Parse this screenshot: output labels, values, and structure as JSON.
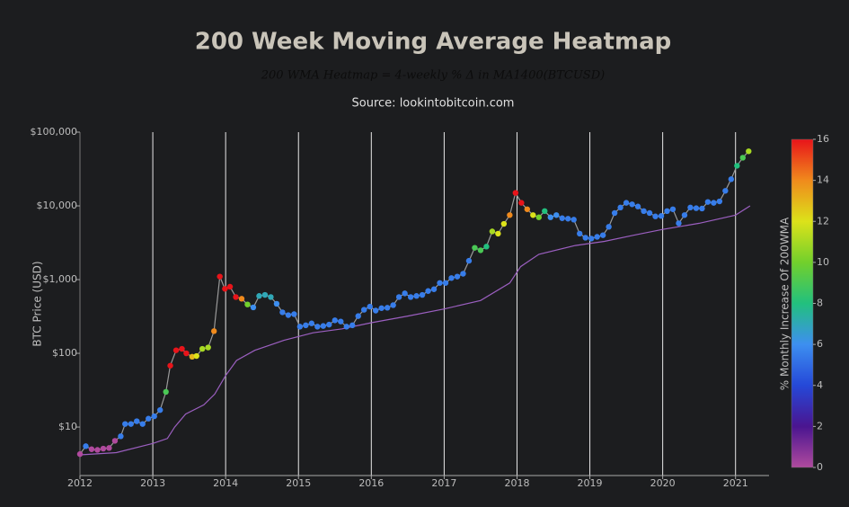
{
  "chart_data": {
    "type": "scatter",
    "title": "200 Week Moving Average Heatmap",
    "subtitle": "200 WMA Heatmap = 4-weekly % Δ in MA1400(BTCUSD)",
    "source": "Source: lookintobitcoin.com",
    "ylabel": "BTC Price (USD)",
    "colorbar_label": "% Monthly Increase Of 200WMA",
    "log_y": true,
    "grid_x": true,
    "xlim": [
      2012,
      2021.46
    ],
    "xticks": [
      2012,
      2013,
      2014,
      2015,
      2016,
      2017,
      2018,
      2019,
      2020,
      2021
    ],
    "ylim": [
      2.2,
      100000
    ],
    "yticks": [
      {
        "value": 10,
        "label": "$10"
      },
      {
        "value": 100,
        "label": "$100"
      },
      {
        "value": 1000,
        "label": "$1,000"
      },
      {
        "value": 10000,
        "label": "$10,000"
      },
      {
        "value": 100000,
        "label": "$100,000"
      }
    ],
    "colorbar_lim": [
      0,
      16
    ],
    "colorbar_ticks": [
      0,
      2,
      4,
      6,
      8,
      10,
      12,
      14,
      16
    ],
    "colorscale": [
      [
        0,
        "#b04a9e"
      ],
      [
        2,
        "#4a1590"
      ],
      [
        4,
        "#2548d8"
      ],
      [
        6,
        "#3d8ff0"
      ],
      [
        8,
        "#22c07e"
      ],
      [
        10,
        "#72d02c"
      ],
      [
        12,
        "#dce21a"
      ],
      [
        14,
        "#f08a1c"
      ],
      [
        16,
        "#e8141a"
      ]
    ],
    "series": [
      {
        "color": "#9a9a9a",
        "marker": true,
        "x": [
          2012.0,
          2012.08,
          2012.16,
          2012.24,
          2012.32,
          2012.4,
          2012.48,
          2012.56,
          2012.62,
          2012.7,
          2012.78,
          2012.86,
          2012.94,
          2013.02,
          2013.1,
          2013.18,
          2013.24,
          2013.32,
          2013.4,
          2013.46,
          2013.54,
          2013.6,
          2013.68,
          2013.76,
          2013.84,
          2013.92,
          2013.99,
          2014.06,
          2014.14,
          2014.22,
          2014.3,
          2014.38,
          2014.46,
          2014.54,
          2014.62,
          2014.7,
          2014.78,
          2014.86,
          2014.94,
          2015.02,
          2015.1,
          2015.18,
          2015.26,
          2015.34,
          2015.42,
          2015.5,
          2015.58,
          2015.66,
          2015.74,
          2015.82,
          2015.9,
          2015.98,
          2016.06,
          2016.14,
          2016.22,
          2016.3,
          2016.38,
          2016.46,
          2016.54,
          2016.62,
          2016.7,
          2016.78,
          2016.86,
          2016.94,
          2017.02,
          2017.1,
          2017.18,
          2017.26,
          2017.34,
          2017.42,
          2017.5,
          2017.58,
          2017.66,
          2017.74,
          2017.82,
          2017.9,
          2017.98,
          2018.06,
          2018.14,
          2018.22,
          2018.3,
          2018.38,
          2018.46,
          2018.54,
          2018.62,
          2018.7,
          2018.78,
          2018.86,
          2018.94,
          2019.02,
          2019.1,
          2019.18,
          2019.26,
          2019.34,
          2019.42,
          2019.5,
          2019.58,
          2019.66,
          2019.74,
          2019.82,
          2019.9,
          2019.98,
          2020.06,
          2020.14,
          2020.22,
          2020.3,
          2020.38,
          2020.46,
          2020.54,
          2020.62,
          2020.7,
          2020.78,
          2020.86,
          2020.94,
          2021.02,
          2021.1,
          2021.18
        ],
        "values": [
          4.3,
          5.5,
          5.0,
          4.9,
          5.1,
          5.2,
          6.5,
          7.5,
          11,
          11,
          12,
          11,
          13,
          14,
          17,
          30,
          68,
          110,
          115,
          100,
          90,
          92,
          115,
          120,
          200,
          1100,
          750,
          800,
          580,
          550,
          460,
          420,
          600,
          620,
          580,
          470,
          360,
          330,
          340,
          230,
          240,
          255,
          230,
          235,
          245,
          280,
          270,
          230,
          240,
          320,
          390,
          430,
          380,
          410,
          415,
          450,
          580,
          650,
          580,
          600,
          620,
          700,
          740,
          900,
          900,
          1050,
          1100,
          1200,
          1800,
          2700,
          2500,
          2800,
          4500,
          4200,
          5700,
          7500,
          15000,
          11000,
          9000,
          7500,
          7000,
          8500,
          7000,
          7500,
          6800,
          6700,
          6500,
          4200,
          3700,
          3600,
          3800,
          4000,
          5200,
          8000,
          9500,
          11000,
          10500,
          9800,
          8500,
          8000,
          7200,
          7300,
          8500,
          9000,
          5800,
          7500,
          9500,
          9300,
          9200,
          11300,
          11000,
          11500,
          16000,
          23000,
          35000,
          45000,
          55000
        ],
        "color_values": [
          0,
          5.5,
          0,
          0,
          0,
          0,
          0,
          5.5,
          5.5,
          5.5,
          5.5,
          5.5,
          5.5,
          5.5,
          5.5,
          9,
          16,
          16,
          16,
          16,
          13,
          12,
          11,
          11,
          14,
          16,
          16,
          16,
          16,
          14,
          10,
          6,
          7,
          7,
          7,
          6,
          5.5,
          5.5,
          5.5,
          5.5,
          5.5,
          5.5,
          5.5,
          5.5,
          5.5,
          5.5,
          5.5,
          5.5,
          5.5,
          5.5,
          5.5,
          5.5,
          5.5,
          5.5,
          5.5,
          5.5,
          5.5,
          5.5,
          5.5,
          5.5,
          5.5,
          5.5,
          5.5,
          5.5,
          5.5,
          5.5,
          5.5,
          5.5,
          5.5,
          9,
          9,
          8,
          11,
          12,
          12,
          14,
          16,
          16,
          14,
          12,
          10,
          8,
          6,
          6,
          5.5,
          5.5,
          5.5,
          5.5,
          5.5,
          5.5,
          5.5,
          5.5,
          5.5,
          5.5,
          5.5,
          5.5,
          5.5,
          5.5,
          5.5,
          5.5,
          5.5,
          5.5,
          5.5,
          5.5,
          5.5,
          5.5,
          5.5,
          5.5,
          5.5,
          5.5,
          5.5,
          5.5,
          5.5,
          5.5,
          8,
          9,
          11
        ]
      },
      {
        "color": "#9b5fc0",
        "marker": false,
        "x": [
          2012.0,
          2012.5,
          2013.0,
          2013.2,
          2013.3,
          2013.45,
          2013.7,
          2013.85,
          2014.0,
          2014.15,
          2014.4,
          2014.8,
          2015.2,
          2015.6,
          2016.0,
          2016.5,
          2017.0,
          2017.5,
          2017.9,
          2018.05,
          2018.3,
          2018.8,
          2019.2,
          2019.6,
          2020.0,
          2020.5,
          2021.0,
          2021.2
        ],
        "values": [
          4.2,
          4.5,
          6.0,
          7,
          10,
          15,
          20,
          28,
          50,
          80,
          110,
          150,
          190,
          215,
          260,
          320,
          400,
          520,
          900,
          1500,
          2200,
          2900,
          3300,
          4000,
          4800,
          5800,
          7500,
          10000
        ]
      }
    ]
  }
}
